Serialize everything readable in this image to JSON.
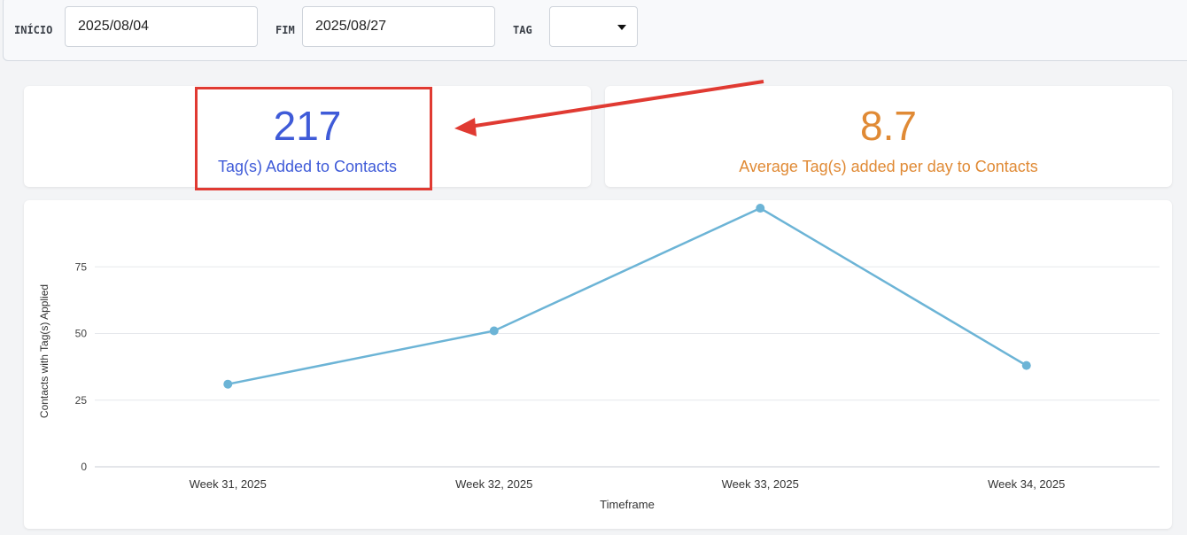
{
  "filters": {
    "start_label": "INÍCIO",
    "start_value": "2025/08/04",
    "end_label": "FIM",
    "end_value": "2025/08/27",
    "tag_label": "TAG",
    "tag_value": ""
  },
  "stats": {
    "total": {
      "value": "217",
      "label": "Tag(s) Added to Contacts",
      "color": "#3f5bd8"
    },
    "average": {
      "value": "8.7",
      "label": "Average Tag(s) added per day to Contacts",
      "color": "#e08a35"
    }
  },
  "annotation": {
    "color": "#e03a32"
  },
  "chart_data": {
    "type": "line",
    "categories": [
      "Week 31, 2025",
      "Week 32, 2025",
      "Week 33, 2025",
      "Week 34, 2025"
    ],
    "series": [
      {
        "values": [
          31,
          51,
          97,
          38
        ],
        "color": "#6cb4d6"
      }
    ],
    "xlabel": "Timeframe",
    "ylabel": "Contacts with Tag(s) Applied",
    "yticks": [
      0,
      25,
      50,
      75
    ],
    "ylim": [
      0,
      100
    ],
    "grid": true
  }
}
